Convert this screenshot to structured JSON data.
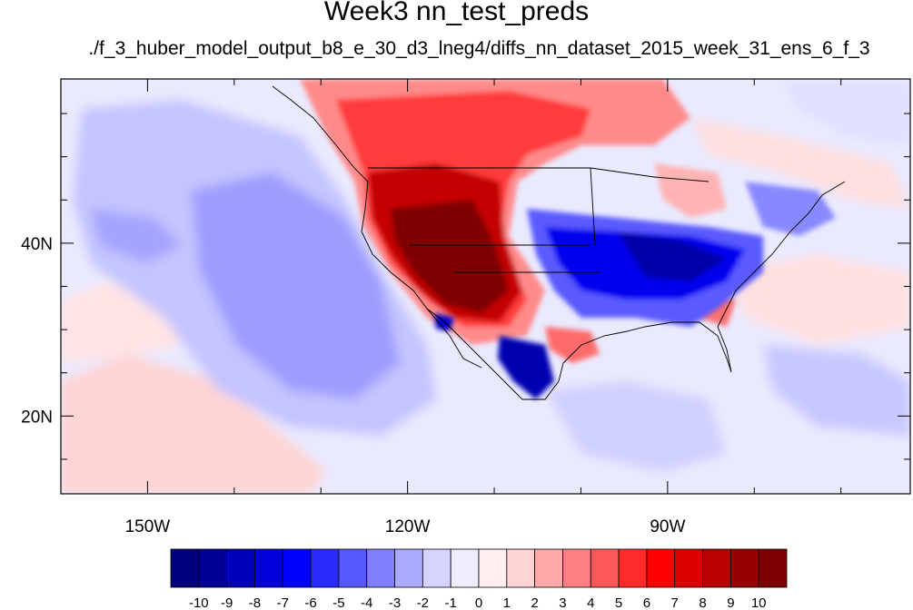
{
  "title": "Week3 nn_test_preds",
  "subtitle": "./f_3_huber_model_output_b8_e_30_d3_lneg4/diffs_nn_dataset_2015_week_31_ens_6_f_3",
  "map": {
    "lon_range": [
      -160,
      -62
    ],
    "lat_range": [
      11,
      59
    ],
    "lon_ticks": [
      {
        "value": -150,
        "label": "150W"
      },
      {
        "value": -120,
        "label": "120W"
      },
      {
        "value": -90,
        "label": "90W"
      }
    ],
    "lat_ticks": [
      {
        "value": 40,
        "label": "40N"
      },
      {
        "value": 20,
        "label": "20N"
      }
    ]
  },
  "colorbar": {
    "labels": [
      "-10",
      "-9",
      "-8",
      "-7",
      "-6",
      "-5",
      "-4",
      "-3",
      "-2",
      "-1",
      "0",
      "1",
      "2",
      "3",
      "4",
      "5",
      "6",
      "7",
      "8",
      "9",
      "10"
    ],
    "colors": [
      "#00007f",
      "#000099",
      "#0000bb",
      "#0000dd",
      "#0000ff",
      "#2a2aff",
      "#5858ff",
      "#8080ff",
      "#aaaaff",
      "#d4d4ff",
      "#eeeeff",
      "#ffeeee",
      "#ffd4d4",
      "#ffaaaa",
      "#ff8080",
      "#ff5858",
      "#ff2a2a",
      "#ff0000",
      "#dd0000",
      "#bb0000",
      "#990000",
      "#7f0000"
    ]
  }
}
